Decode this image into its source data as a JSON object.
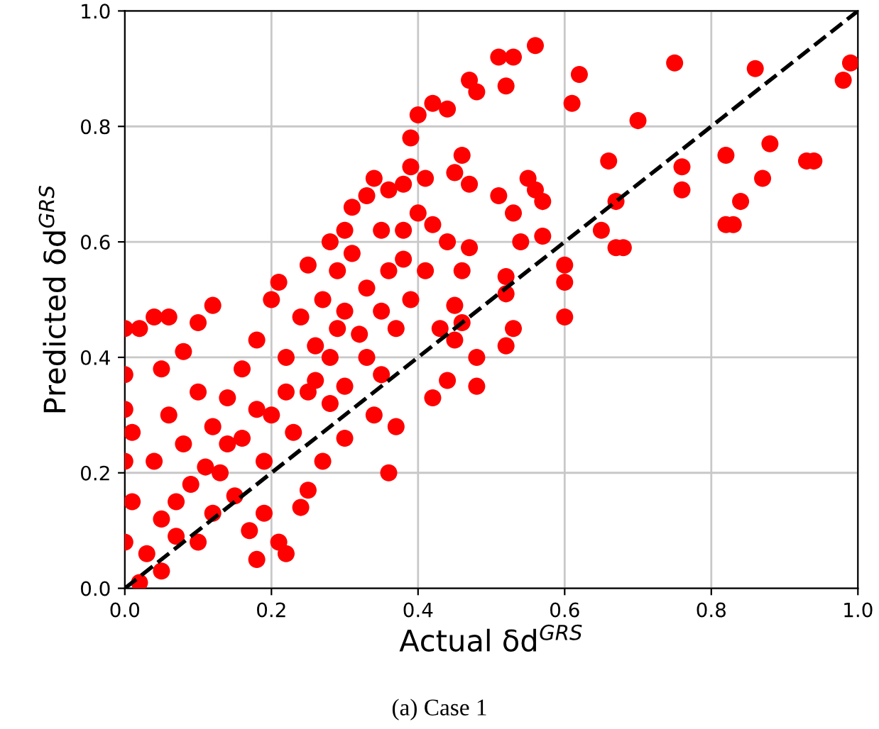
{
  "chart_data": {
    "type": "scatter",
    "xlabel": "Actual δd$^{GRS}$",
    "ylabel": "Predicted δd$^{GRS}$",
    "annotations": [
      "(a) Case 1"
    ],
    "xlim": [
      0,
      1
    ],
    "ylim": [
      0,
      1
    ],
    "xticks": [
      {
        "value": 0,
        "label": "0.0"
      },
      {
        "value": 0.2,
        "label": "0.2"
      },
      {
        "value": 0.4,
        "label": "0.4"
      },
      {
        "value": 0.6,
        "label": "0.6"
      },
      {
        "value": 0.8,
        "label": "0.8"
      },
      {
        "value": 1,
        "label": "1.0"
      }
    ],
    "yticks": [
      {
        "value": 0,
        "label": "0.0"
      },
      {
        "value": 0.2,
        "label": "0.2"
      },
      {
        "value": 0.4,
        "label": "0.4"
      },
      {
        "value": 0.6,
        "label": "0.6"
      },
      {
        "value": 0.8,
        "label": "0.8"
      },
      {
        "value": 1,
        "label": "1.0"
      }
    ],
    "grid": true,
    "legend": false,
    "marker": "circle",
    "series": [
      {
        "color": "#ff0000",
        "x": [
          0.99,
          0.98,
          0.93,
          0.94,
          0.88,
          0.87,
          0.86,
          0.84,
          0.82,
          0.82,
          0.83,
          0.76,
          0.76,
          0.75,
          0.7,
          0.67,
          0.67,
          0.68,
          0.65,
          0.66,
          0.62,
          0.61,
          0.6,
          0.6,
          0.6,
          0.57,
          0.56,
          0.53,
          0.52,
          0.51,
          0.52,
          0.52,
          0.48,
          0.47,
          0.46,
          0.43,
          0.46,
          0.44,
          0.42,
          0.45,
          0.45,
          0.48,
          0.52,
          0.53,
          0.56,
          0.57,
          0.55,
          0.51,
          0.53,
          0.54,
          0.46,
          0.48,
          0.47,
          0.44,
          0.47,
          0.45,
          0.41,
          0.4,
          0.39,
          0.38,
          0.36,
          0.36,
          0.35,
          0.33,
          0.31,
          0.3,
          0.33,
          0.35,
          0.36,
          0.37,
          0.34,
          0.3,
          0.28,
          0.3,
          0.27,
          0.25,
          0.24,
          0.22,
          0.21,
          0.19,
          0.17,
          0.13,
          0.1,
          0.05,
          0.02,
          0.0,
          0.01,
          0.0,
          0.01,
          0.0,
          0.0,
          0.0,
          0.02,
          0.04,
          0.06,
          0.1,
          0.12,
          0.08,
          0.05,
          0.06,
          0.1,
          0.08,
          0.04,
          0.09,
          0.05,
          0.12,
          0.15,
          0.14,
          0.14,
          0.16,
          0.18,
          0.2,
          0.21,
          0.22,
          0.2,
          0.19,
          0.23,
          0.25,
          0.26,
          0.24,
          0.27,
          0.25,
          0.29,
          0.3,
          0.28,
          0.33,
          0.31,
          0.34,
          0.38,
          0.39,
          0.4,
          0.42,
          0.38,
          0.42,
          0.44,
          0.41,
          0.39,
          0.37,
          0.35,
          0.32,
          0.28,
          0.29,
          0.26,
          0.22,
          0.18,
          0.16,
          0.12,
          0.11,
          0.07,
          0.03,
          0.07,
          0.18
        ],
        "values": [
          0.91,
          0.88,
          0.74,
          0.74,
          0.77,
          0.71,
          0.9,
          0.67,
          0.75,
          0.63,
          0.63,
          0.69,
          0.73,
          0.91,
          0.81,
          0.67,
          0.59,
          0.59,
          0.62,
          0.74,
          0.89,
          0.84,
          0.47,
          0.53,
          0.56,
          0.61,
          0.94,
          0.92,
          0.87,
          0.92,
          0.54,
          0.51,
          0.35,
          0.59,
          0.55,
          0.45,
          0.46,
          0.36,
          0.33,
          0.43,
          0.49,
          0.4,
          0.42,
          0.45,
          0.69,
          0.67,
          0.71,
          0.68,
          0.65,
          0.6,
          0.75,
          0.86,
          0.88,
          0.83,
          0.7,
          0.72,
          0.71,
          0.65,
          0.73,
          0.57,
          0.55,
          0.69,
          0.62,
          0.52,
          0.58,
          0.48,
          0.4,
          0.37,
          0.2,
          0.28,
          0.3,
          0.35,
          0.32,
          0.26,
          0.22,
          0.17,
          0.14,
          0.06,
          0.08,
          0.13,
          0.1,
          0.2,
          0.08,
          0.03,
          0.01,
          0.08,
          0.15,
          0.22,
          0.27,
          0.31,
          0.37,
          0.45,
          0.45,
          0.47,
          0.47,
          0.46,
          0.49,
          0.41,
          0.38,
          0.3,
          0.34,
          0.25,
          0.22,
          0.18,
          0.12,
          0.13,
          0.16,
          0.25,
          0.33,
          0.38,
          0.43,
          0.5,
          0.53,
          0.4,
          0.3,
          0.22,
          0.27,
          0.34,
          0.42,
          0.47,
          0.5,
          0.56,
          0.55,
          0.62,
          0.6,
          0.68,
          0.66,
          0.71,
          0.7,
          0.78,
          0.82,
          0.84,
          0.62,
          0.63,
          0.6,
          0.55,
          0.5,
          0.45,
          0.48,
          0.44,
          0.4,
          0.45,
          0.36,
          0.34,
          0.31,
          0.26,
          0.28,
          0.21,
          0.15,
          0.06,
          0.09,
          0.05
        ]
      },
      {
        "type": "line",
        "color": "#000000",
        "line_style": "dashed",
        "marker": "none",
        "x": [
          0,
          1
        ],
        "values": [
          0,
          1
        ]
      }
    ]
  }
}
